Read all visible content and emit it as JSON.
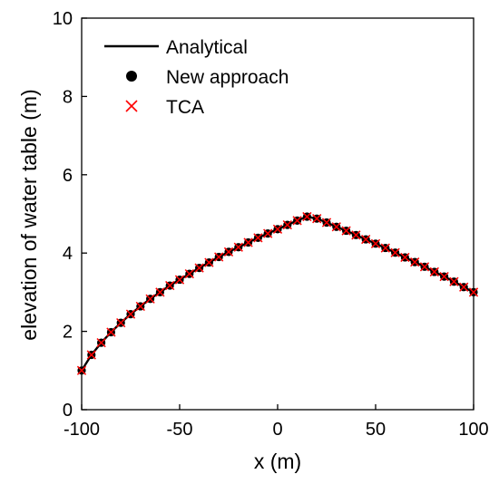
{
  "chart_data": {
    "type": "line",
    "title": "",
    "xlabel": "x (m)",
    "ylabel": "elevation of water table (m)",
    "xlim": [
      -100,
      100
    ],
    "ylim": [
      0,
      10
    ],
    "xticks": [
      "-100",
      "-50",
      "0",
      "50",
      "100"
    ],
    "yticks": [
      "0",
      "2",
      "4",
      "6",
      "8",
      "10"
    ],
    "grid": false,
    "legend_position": "top-left",
    "colors": {
      "analytical": "#000000",
      "new_approach": "#000000",
      "tca": "#ff0000"
    },
    "series": [
      {
        "name": "Analytical",
        "style": "line",
        "x": [
          -100,
          -95,
          -90,
          -85,
          -80,
          -75,
          -70,
          -65,
          -60,
          -55,
          -50,
          -45,
          -40,
          -35,
          -30,
          -25,
          -20,
          -15,
          -10,
          -5,
          0,
          5,
          10,
          15,
          20,
          25,
          30,
          35,
          40,
          45,
          50,
          55,
          60,
          65,
          70,
          75,
          80,
          85,
          90,
          95,
          100
        ],
        "y": [
          1.0,
          1.4,
          1.71,
          1.98,
          2.22,
          2.44,
          2.64,
          2.83,
          3.0,
          3.17,
          3.32,
          3.47,
          3.62,
          3.76,
          3.9,
          4.03,
          4.15,
          4.27,
          4.39,
          4.5,
          4.61,
          4.72,
          4.83,
          4.93,
          4.88,
          4.78,
          4.67,
          4.57,
          4.46,
          4.35,
          4.24,
          4.13,
          4.01,
          3.89,
          3.77,
          3.65,
          3.52,
          3.4,
          3.27,
          3.13,
          3.0
        ]
      },
      {
        "name": "New approach",
        "style": "dot",
        "x": [
          -100,
          -95,
          -90,
          -85,
          -80,
          -75,
          -70,
          -65,
          -60,
          -55,
          -50,
          -45,
          -40,
          -35,
          -30,
          -25,
          -20,
          -15,
          -10,
          -5,
          0,
          5,
          10,
          15,
          20,
          25,
          30,
          35,
          40,
          45,
          50,
          55,
          60,
          65,
          70,
          75,
          80,
          85,
          90,
          95,
          100
        ],
        "y": [
          1.0,
          1.4,
          1.71,
          1.98,
          2.22,
          2.44,
          2.64,
          2.83,
          3.0,
          3.17,
          3.32,
          3.47,
          3.62,
          3.76,
          3.9,
          4.03,
          4.15,
          4.27,
          4.39,
          4.5,
          4.61,
          4.72,
          4.83,
          4.93,
          4.88,
          4.78,
          4.67,
          4.57,
          4.46,
          4.35,
          4.24,
          4.13,
          4.01,
          3.89,
          3.77,
          3.65,
          3.52,
          3.4,
          3.27,
          3.13,
          3.0
        ]
      },
      {
        "name": "TCA",
        "style": "cross",
        "x": [
          -100,
          -95,
          -90,
          -85,
          -80,
          -75,
          -70,
          -65,
          -60,
          -55,
          -50,
          -45,
          -40,
          -35,
          -30,
          -25,
          -20,
          -15,
          -10,
          -5,
          0,
          5,
          10,
          15,
          20,
          25,
          30,
          35,
          40,
          45,
          50,
          55,
          60,
          65,
          70,
          75,
          80,
          85,
          90,
          95,
          100
        ],
        "y": [
          1.0,
          1.4,
          1.71,
          1.98,
          2.22,
          2.44,
          2.64,
          2.83,
          3.0,
          3.17,
          3.32,
          3.47,
          3.62,
          3.76,
          3.9,
          4.03,
          4.15,
          4.27,
          4.39,
          4.5,
          4.61,
          4.72,
          4.83,
          4.93,
          4.88,
          4.78,
          4.67,
          4.57,
          4.46,
          4.35,
          4.24,
          4.13,
          4.01,
          3.89,
          3.77,
          3.65,
          3.52,
          3.4,
          3.27,
          3.13,
          3.0
        ]
      }
    ]
  }
}
